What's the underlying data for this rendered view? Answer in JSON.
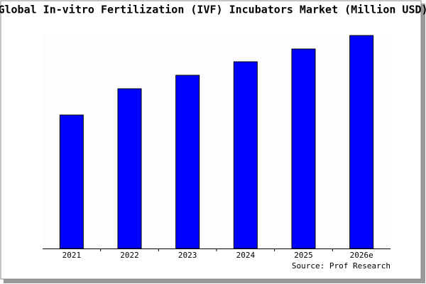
{
  "chart_data": {
    "type": "bar",
    "title": "Global In-vitro Fertilization (IVF) Incubators Market (Million USD)",
    "categories": [
      "2021",
      "2022",
      "2023",
      "2024",
      "2025",
      "2026e"
    ],
    "values": [
      188,
      225,
      244,
      263,
      281,
      300
    ],
    "color": "#0000ff",
    "ylim": [
      0,
      302
    ],
    "source": "Source: Prof Research"
  }
}
